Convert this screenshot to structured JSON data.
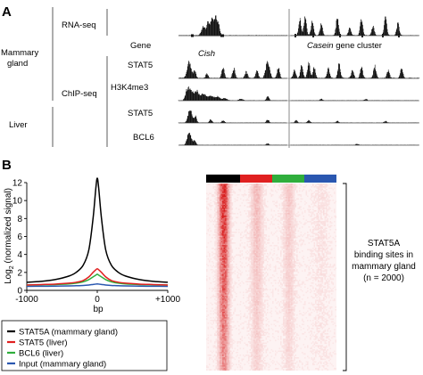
{
  "panel_a": {
    "letter": "A",
    "group_labels": {
      "mammary_line1": "Mammary",
      "mammary_line2": "gland",
      "liver": "Liver"
    },
    "assay_labels": {
      "rna": "RNA-seq",
      "chip": "ChIP-seq"
    },
    "gene_label": "Gene",
    "loci": {
      "left_name": "Cish",
      "right_name_italic": "Casein",
      "right_name_rest": " gene cluster"
    },
    "tracks": [
      "STAT5",
      "H3K4me3",
      "STAT5",
      "BCL6"
    ]
  },
  "panel_b": {
    "letter": "B",
    "legend": [
      "STAT5A (mammary gland)",
      "STAT5 (liver)",
      "BCL6 (liver)",
      "Input (mammary gland)"
    ],
    "colors": {
      "stat5a": "#000000",
      "stat5_liver": "#e02020",
      "bcl6": "#2fae3c",
      "input": "#2a57b0"
    },
    "heatmap_annotation": [
      "STAT5A",
      "binding sites in",
      "mammary gland",
      "(n = 2000)"
    ]
  },
  "chart_data": {
    "type": "line",
    "x": [
      -1000,
      -800,
      -600,
      -400,
      -300,
      -200,
      -120,
      -60,
      -20,
      0,
      20,
      60,
      120,
      200,
      300,
      400,
      600,
      800,
      1000
    ],
    "series": [
      {
        "name": "STAT5A (mammary gland)",
        "color": "#000000",
        "values": [
          0.9,
          1.0,
          1.2,
          1.6,
          2.0,
          2.8,
          4.5,
          8.0,
          11.4,
          12.5,
          11.4,
          8.0,
          4.5,
          2.8,
          2.0,
          1.6,
          1.2,
          1.0,
          0.9
        ]
      },
      {
        "name": "STAT5 (liver)",
        "color": "#e02020",
        "values": [
          0.6,
          0.65,
          0.7,
          0.8,
          0.9,
          1.1,
          1.5,
          2.0,
          2.3,
          2.4,
          2.3,
          2.0,
          1.5,
          1.1,
          0.9,
          0.8,
          0.7,
          0.65,
          0.6
        ]
      },
      {
        "name": "BCL6 (liver)",
        "color": "#2fae3c",
        "values": [
          0.6,
          0.62,
          0.65,
          0.72,
          0.8,
          0.95,
          1.2,
          1.5,
          1.7,
          1.8,
          1.7,
          1.5,
          1.2,
          0.95,
          0.8,
          0.72,
          0.65,
          0.62,
          0.6
        ]
      },
      {
        "name": "Input (mammary gland)",
        "color": "#2a57b0",
        "values": [
          0.45,
          0.46,
          0.47,
          0.5,
          0.52,
          0.55,
          0.6,
          0.66,
          0.7,
          0.72,
          0.7,
          0.66,
          0.6,
          0.55,
          0.52,
          0.5,
          0.47,
          0.46,
          0.45
        ]
      }
    ],
    "xlim": [
      -1000,
      1000
    ],
    "ylim": [
      0,
      12
    ],
    "x_ticks": [
      "-1000",
      "0",
      "+1000"
    ],
    "y_ticks": [
      "0",
      "2",
      "4",
      "6",
      "8",
      "10",
      "12"
    ],
    "xlabel": "bp",
    "ylabel_prefix": "Log",
    "ylabel_sub": "2",
    "ylabel_rest": " (normalized signal)",
    "legend_position": "bottom"
  }
}
